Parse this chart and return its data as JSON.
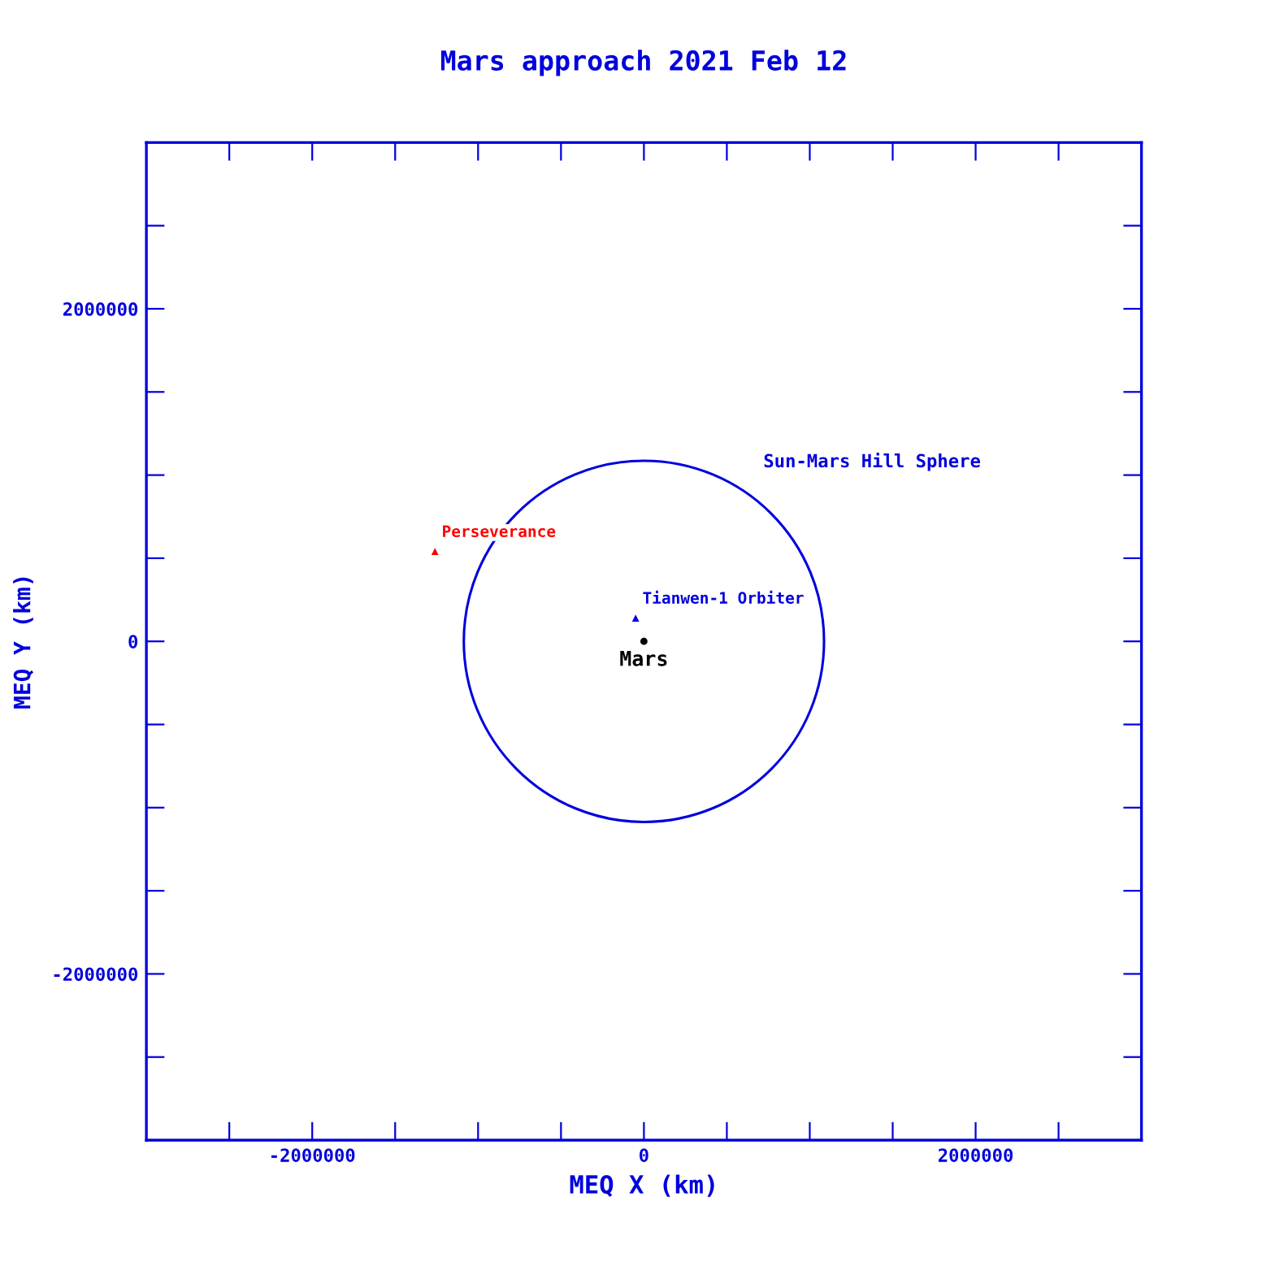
{
  "chart_data": {
    "type": "scatter",
    "title": "Mars approach 2021 Feb 12",
    "xlabel": "MEQ X (km)",
    "ylabel": "MEQ Y (km)",
    "xlim": [
      -3000000,
      3000000
    ],
    "ylim": [
      -3000000,
      3000000
    ],
    "xticks": [
      {
        "value": -2500000,
        "label": null
      },
      -2000000,
      {
        "value": -1500000,
        "label": null
      },
      {
        "value": -1000000,
        "label": null
      },
      {
        "value": -500000,
        "label": null
      },
      0,
      {
        "value": 500000,
        "label": null
      },
      {
        "value": 1000000,
        "label": null
      },
      {
        "value": 1500000,
        "label": null
      },
      2000000,
      {
        "value": 2500000,
        "label": null
      }
    ],
    "yticks": [
      {
        "value": -2500000,
        "label": null
      },
      -2000000,
      {
        "value": -1500000,
        "label": null
      },
      {
        "value": -1000000,
        "label": null
      },
      {
        "value": -500000,
        "label": null
      },
      0,
      {
        "value": 500000,
        "label": null
      },
      {
        "value": 1000000,
        "label": null
      },
      {
        "value": 1500000,
        "label": null
      },
      2000000,
      {
        "value": 2500000,
        "label": null
      }
    ],
    "grid": false,
    "legend": false,
    "series": [
      {
        "name": "Perseverance",
        "color": "#ff0000",
        "marker": "triangle",
        "x": [
          -1260000
        ],
        "values": [
          540000
        ]
      },
      {
        "name": "Tianwen-1 Orbiter",
        "color": "#0000dd",
        "marker": "triangle",
        "x": [
          -50000
        ],
        "values": [
          140000
        ]
      },
      {
        "color": "#000000",
        "marker": "circle",
        "x": [
          0
        ],
        "values": [
          0
        ]
      }
    ],
    "annotations": [
      {
        "text": "Mars",
        "x": 0,
        "y": 0
      },
      "Sun-Mars Hill Sphere"
    ]
  }
}
